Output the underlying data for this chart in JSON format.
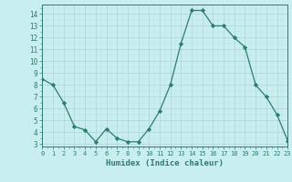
{
  "x": [
    0,
    1,
    2,
    3,
    4,
    5,
    6,
    7,
    8,
    9,
    10,
    11,
    12,
    13,
    14,
    15,
    16,
    17,
    18,
    19,
    20,
    21,
    22,
    23
  ],
  "y": [
    8.5,
    8.0,
    6.5,
    4.5,
    4.2,
    3.2,
    4.3,
    3.5,
    3.2,
    3.2,
    4.3,
    5.8,
    8.0,
    11.5,
    14.3,
    14.3,
    13.0,
    13.0,
    12.0,
    11.2,
    8.0,
    7.0,
    5.5,
    3.3
  ],
  "xlim": [
    0,
    23
  ],
  "ylim": [
    2.8,
    14.8
  ],
  "yticks": [
    3,
    4,
    5,
    6,
    7,
    8,
    9,
    10,
    11,
    12,
    13,
    14
  ],
  "xticks": [
    0,
    1,
    2,
    3,
    4,
    5,
    6,
    7,
    8,
    9,
    10,
    11,
    12,
    13,
    14,
    15,
    16,
    17,
    18,
    19,
    20,
    21,
    22,
    23
  ],
  "xlabel": "Humidex (Indice chaleur)",
  "line_color": "#2d7d6e",
  "marker": "D",
  "marker_size": 2.2,
  "bg_color": "#c8eef0",
  "grid_major_color": "#aed4d4",
  "grid_minor_color": "#bde4e4"
}
